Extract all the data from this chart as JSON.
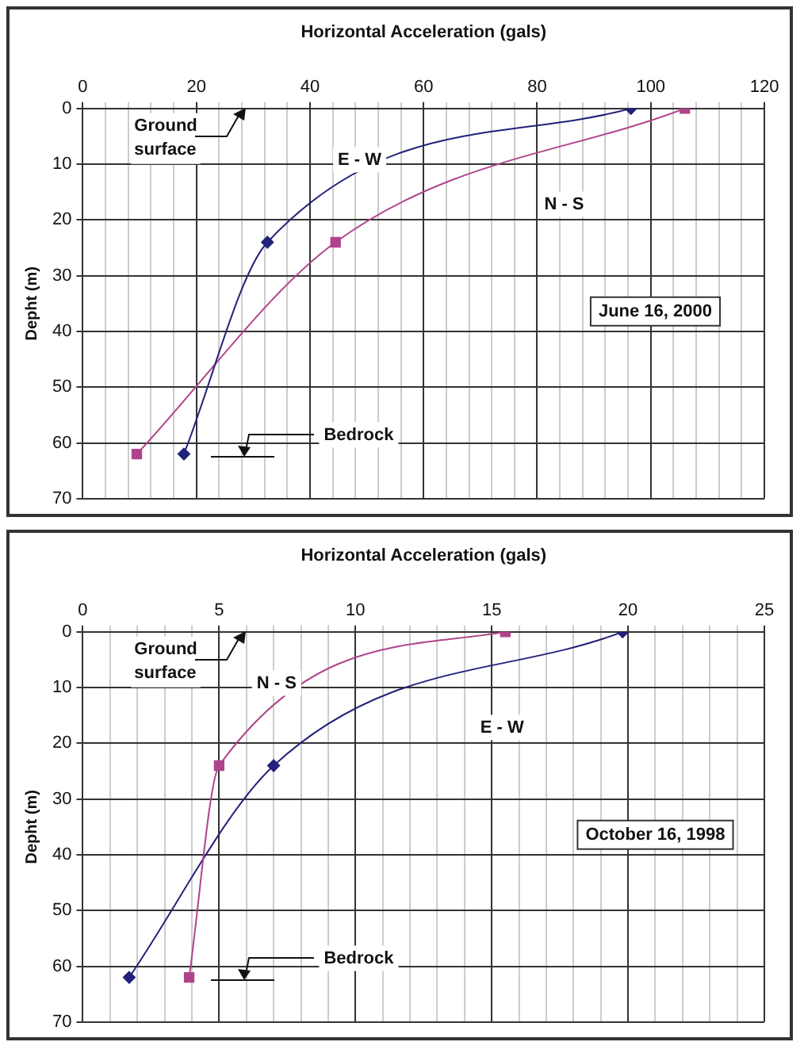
{
  "chart_data": [
    {
      "type": "line",
      "xlabel": "Horizontal Acceleration (gals)",
      "ylabel": "Depht (m)",
      "xlim": [
        0,
        120
      ],
      "xticks": [
        0,
        {
          "value": 4,
          "label": null
        },
        {
          "value": 8,
          "label": null
        },
        {
          "value": 12,
          "label": null
        },
        {
          "value": 16,
          "label": null
        },
        20,
        {
          "value": 24,
          "label": null
        },
        {
          "value": 28,
          "label": null
        },
        {
          "value": 32,
          "label": null
        },
        {
          "value": 36,
          "label": null
        },
        40,
        {
          "value": 44,
          "label": null
        },
        {
          "value": 48,
          "label": null
        },
        {
          "value": 52,
          "label": null
        },
        {
          "value": 56,
          "label": null
        },
        60,
        {
          "value": 64,
          "label": null
        },
        {
          "value": 68,
          "label": null
        },
        {
          "value": 72,
          "label": null
        },
        {
          "value": 76,
          "label": null
        },
        80,
        {
          "value": 84,
          "label": null
        },
        {
          "value": 88,
          "label": null
        },
        {
          "value": 92,
          "label": null
        },
        {
          "value": 96,
          "label": null
        },
        100,
        {
          "value": 104,
          "label": null
        },
        {
          "value": 108,
          "label": null
        },
        {
          "value": 112,
          "label": null
        },
        {
          "value": 116,
          "label": null
        },
        120
      ],
      "ylim": [
        70,
        0
      ],
      "yticks": [
        0,
        10,
        20,
        30,
        40,
        50,
        60,
        70
      ],
      "grid": true,
      "legend": false,
      "series": [
        {
          "name": "E - W",
          "color": "#22227a",
          "marker": "diamond",
          "x": [
            96.5,
            32.5,
            17.8
          ],
          "values": [
            0,
            24,
            62
          ]
        },
        {
          "name": "N - S",
          "color": "#b0448a",
          "marker": "square",
          "x": [
            106,
            44.5,
            9.5
          ],
          "values": [
            0,
            24,
            62
          ]
        }
      ],
      "annotations": [
        "Ground surface",
        "Bedrock",
        "June 16, 2000"
      ]
    },
    {
      "type": "line",
      "xlabel": "Horizontal Acceleration (gals)",
      "ylabel": "Depht (m)",
      "xlim": [
        0,
        25
      ],
      "xticks": [
        0,
        {
          "value": 1,
          "label": null
        },
        {
          "value": 2,
          "label": null
        },
        {
          "value": 3,
          "label": null
        },
        {
          "value": 4,
          "label": null
        },
        5,
        {
          "value": 6,
          "label": null
        },
        {
          "value": 7,
          "label": null
        },
        {
          "value": 8,
          "label": null
        },
        {
          "value": 9,
          "label": null
        },
        10,
        {
          "value": 11,
          "label": null
        },
        {
          "value": 12,
          "label": null
        },
        {
          "value": 13,
          "label": null
        },
        {
          "value": 14,
          "label": null
        },
        15,
        {
          "value": 16,
          "label": null
        },
        {
          "value": 17,
          "label": null
        },
        {
          "value": 18,
          "label": null
        },
        {
          "value": 19,
          "label": null
        },
        20,
        {
          "value": 21,
          "label": null
        },
        {
          "value": 22,
          "label": null
        },
        {
          "value": 23,
          "label": null
        },
        {
          "value": 24,
          "label": null
        },
        25
      ],
      "ylim": [
        70,
        0
      ],
      "yticks": [
        0,
        10,
        20,
        30,
        40,
        50,
        60,
        70
      ],
      "grid": true,
      "legend": false,
      "series": [
        {
          "name": "N - S",
          "color": "#b0448a",
          "marker": "square",
          "x": [
            15.5,
            5,
            3.9
          ],
          "values": [
            0,
            24,
            62
          ]
        },
        {
          "name": "E - W",
          "color": "#22227a",
          "marker": "diamond",
          "x": [
            19.8,
            7,
            1.7
          ],
          "values": [
            0,
            24,
            62
          ]
        }
      ],
      "annotations": [
        "Ground surface",
        "Bedrock",
        "October 16, 1998"
      ]
    }
  ]
}
